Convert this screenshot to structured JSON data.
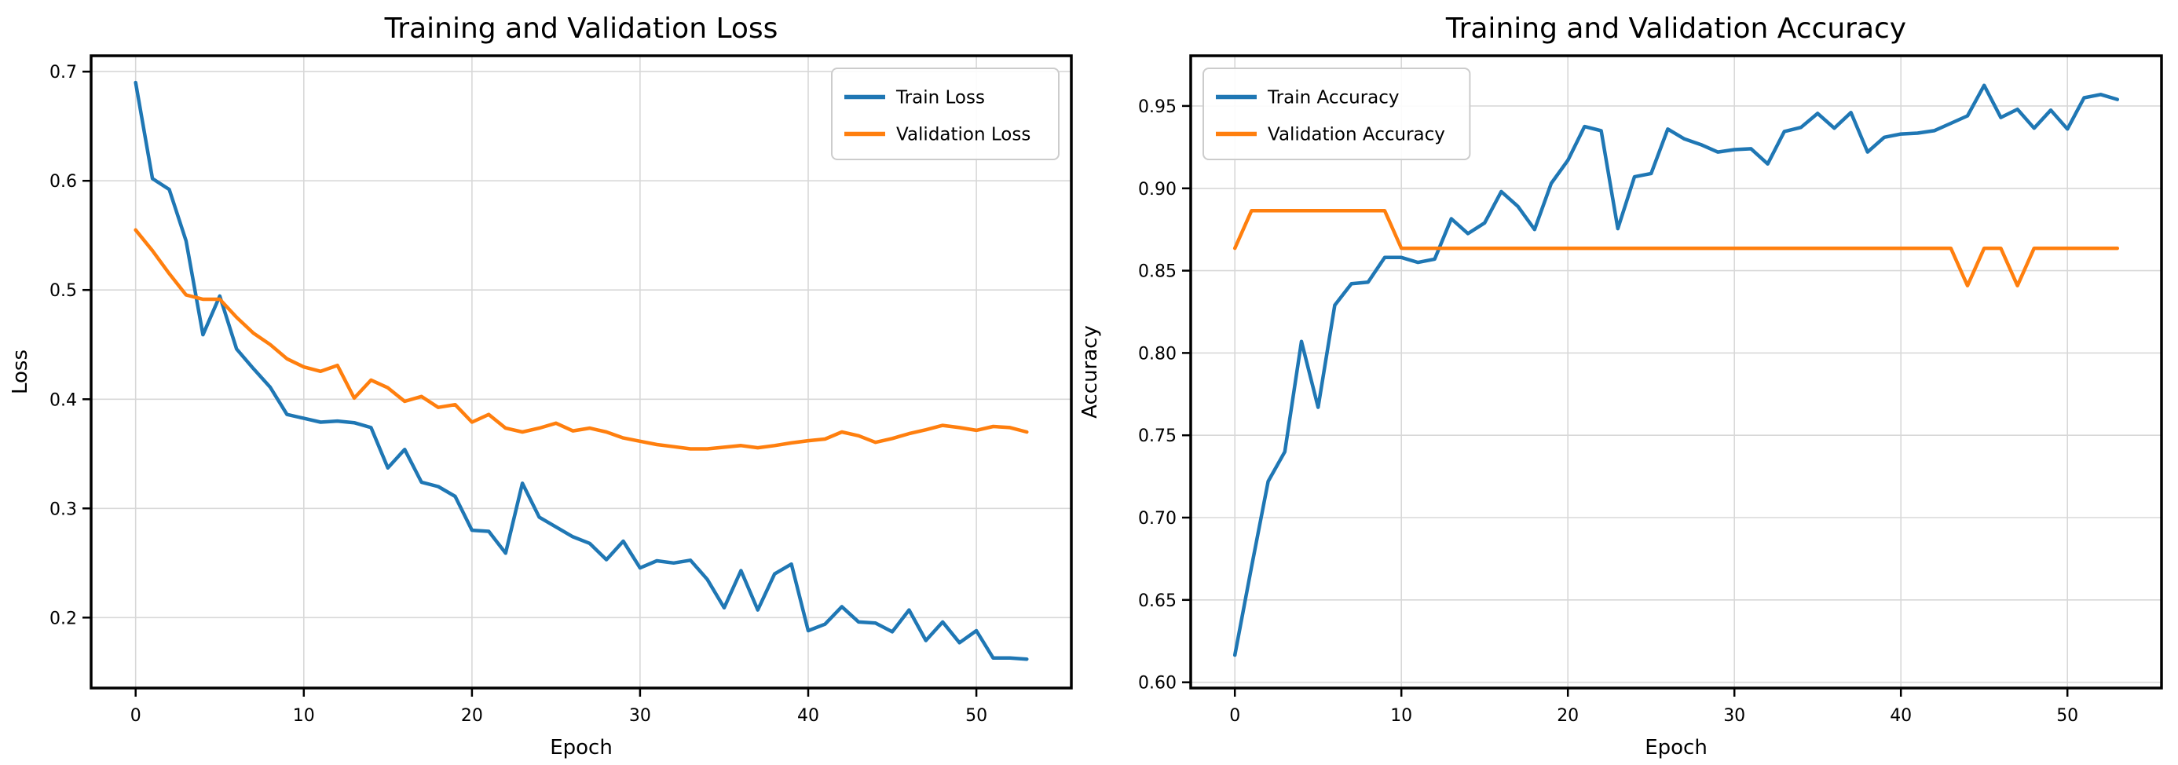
{
  "figure": {
    "background": "#ffffff",
    "grid_color": "#d8d8d8",
    "spine_color": "#000000",
    "text_color": "#000000",
    "legend_border_color": "#cccccc",
    "accent_train": "#1f77b4",
    "accent_validation": "#ff7f0e"
  },
  "chart_data": [
    {
      "id": "loss-chart",
      "type": "line",
      "title": "Training and Validation Loss",
      "xlabel": "Epoch",
      "ylabel": "Loss",
      "grid": true,
      "legend_position": "top-right",
      "xlim": [
        -2.65,
        55.65
      ],
      "ylim": [
        0.1355,
        0.7145
      ],
      "xticks": [
        0,
        10,
        20,
        30,
        40,
        50
      ],
      "xtick_labels": [
        "0",
        "10",
        "20",
        "30",
        "40",
        "50"
      ],
      "yticks": [
        0.2,
        0.3,
        0.4,
        0.5,
        0.6,
        0.7
      ],
      "ytick_labels": [
        "0.2",
        "0.3",
        "0.4",
        "0.5",
        "0.6",
        "0.7"
      ],
      "x": [
        0,
        1,
        2,
        3,
        4,
        5,
        6,
        7,
        8,
        9,
        10,
        11,
        12,
        13,
        14,
        15,
        16,
        17,
        18,
        19,
        20,
        21,
        22,
        23,
        24,
        25,
        26,
        27,
        28,
        29,
        30,
        31,
        32,
        33,
        34,
        35,
        36,
        37,
        38,
        39,
        40,
        41,
        42,
        43,
        44,
        45,
        46,
        47,
        48,
        49,
        50,
        51,
        52,
        53
      ],
      "series": [
        {
          "name": "Train Loss",
          "color": "#1f77b4",
          "values": [
            0.69,
            0.602,
            0.592,
            0.545,
            0.459,
            0.4945,
            0.446,
            0.428,
            0.411,
            0.386,
            0.3825,
            0.379,
            0.38,
            0.3785,
            0.374,
            0.337,
            0.354,
            0.324,
            0.32,
            0.311,
            0.28,
            0.279,
            0.259,
            0.323,
            0.292,
            0.283,
            0.274,
            0.268,
            0.253,
            0.27,
            0.2455,
            0.252,
            0.25,
            0.2525,
            0.235,
            0.209,
            0.243,
            0.207,
            0.24,
            0.249,
            0.188,
            0.194,
            0.21,
            0.196,
            0.195,
            0.187,
            0.207,
            0.179,
            0.196,
            0.177,
            0.188,
            0.163,
            0.163,
            0.162
          ]
        },
        {
          "name": "Validation Loss",
          "color": "#ff7f0e",
          "values": [
            0.555,
            0.536,
            0.515,
            0.4955,
            0.4915,
            0.4915,
            0.475,
            0.4605,
            0.45,
            0.437,
            0.4295,
            0.4255,
            0.431,
            0.401,
            0.4175,
            0.4105,
            0.398,
            0.4025,
            0.3925,
            0.395,
            0.379,
            0.386,
            0.3735,
            0.37,
            0.3735,
            0.378,
            0.371,
            0.3735,
            0.37,
            0.3645,
            0.3615,
            0.3585,
            0.3565,
            0.3545,
            0.3545,
            0.356,
            0.3575,
            0.3555,
            0.3575,
            0.36,
            0.362,
            0.3635,
            0.37,
            0.3665,
            0.3605,
            0.364,
            0.3685,
            0.372,
            0.376,
            0.374,
            0.3715,
            0.375,
            0.374,
            0.37
          ]
        }
      ]
    },
    {
      "id": "accuracy-chart",
      "type": "line",
      "title": "Training and Validation Accuracy",
      "xlabel": "Epoch",
      "ylabel": "Accuracy",
      "grid": true,
      "legend_position": "top-left",
      "xlim": [
        -2.65,
        55.65
      ],
      "ylim": [
        0.5965,
        0.9805
      ],
      "xticks": [
        0,
        10,
        20,
        30,
        40,
        50
      ],
      "xtick_labels": [
        "0",
        "10",
        "20",
        "30",
        "40",
        "50"
      ],
      "yticks": [
        0.6,
        0.65,
        0.7,
        0.75,
        0.8,
        0.85,
        0.9,
        0.95
      ],
      "ytick_labels": [
        "0.60",
        "0.65",
        "0.70",
        "0.75",
        "0.80",
        "0.85",
        "0.90",
        "0.95"
      ],
      "x": [
        0,
        1,
        2,
        3,
        4,
        5,
        6,
        7,
        8,
        9,
        10,
        11,
        12,
        13,
        14,
        15,
        16,
        17,
        18,
        19,
        20,
        21,
        22,
        23,
        24,
        25,
        26,
        27,
        28,
        29,
        30,
        31,
        32,
        33,
        34,
        35,
        36,
        37,
        38,
        39,
        40,
        41,
        42,
        43,
        44,
        45,
        46,
        47,
        48,
        49,
        50,
        51,
        52,
        53
      ],
      "series": [
        {
          "name": "Train Accuracy",
          "color": "#1f77b4",
          "values": [
            0.6165,
            0.67,
            0.722,
            0.74,
            0.807,
            0.767,
            0.829,
            0.842,
            0.843,
            0.858,
            0.858,
            0.855,
            0.857,
            0.8815,
            0.8725,
            0.879,
            0.898,
            0.889,
            0.875,
            0.903,
            0.917,
            0.9375,
            0.935,
            0.8755,
            0.907,
            0.909,
            0.936,
            0.93,
            0.9265,
            0.922,
            0.9235,
            0.924,
            0.9148,
            0.9345,
            0.937,
            0.9455,
            0.9365,
            0.946,
            0.922,
            0.931,
            0.933,
            0.9335,
            0.935,
            0.9395,
            0.944,
            0.9625,
            0.943,
            0.948,
            0.9365,
            0.9475,
            0.936,
            0.955,
            0.957,
            0.954
          ]
        },
        {
          "name": "Validation Accuracy",
          "color": "#ff7f0e",
          "values": [
            0.8636,
            0.8864,
            0.8864,
            0.8864,
            0.8864,
            0.8864,
            0.8864,
            0.8864,
            0.8864,
            0.8864,
            0.8636,
            0.8636,
            0.8636,
            0.8636,
            0.8636,
            0.8636,
            0.8636,
            0.8636,
            0.8636,
            0.8636,
            0.8636,
            0.8636,
            0.8636,
            0.8636,
            0.8636,
            0.8636,
            0.8636,
            0.8636,
            0.8636,
            0.8636,
            0.8636,
            0.8636,
            0.8636,
            0.8636,
            0.8636,
            0.8636,
            0.8636,
            0.8636,
            0.8636,
            0.8636,
            0.8636,
            0.8636,
            0.8636,
            0.8636,
            0.8409,
            0.8636,
            0.8636,
            0.8409,
            0.8636,
            0.8636,
            0.8636,
            0.8636,
            0.8636,
            0.8636
          ]
        }
      ]
    }
  ]
}
